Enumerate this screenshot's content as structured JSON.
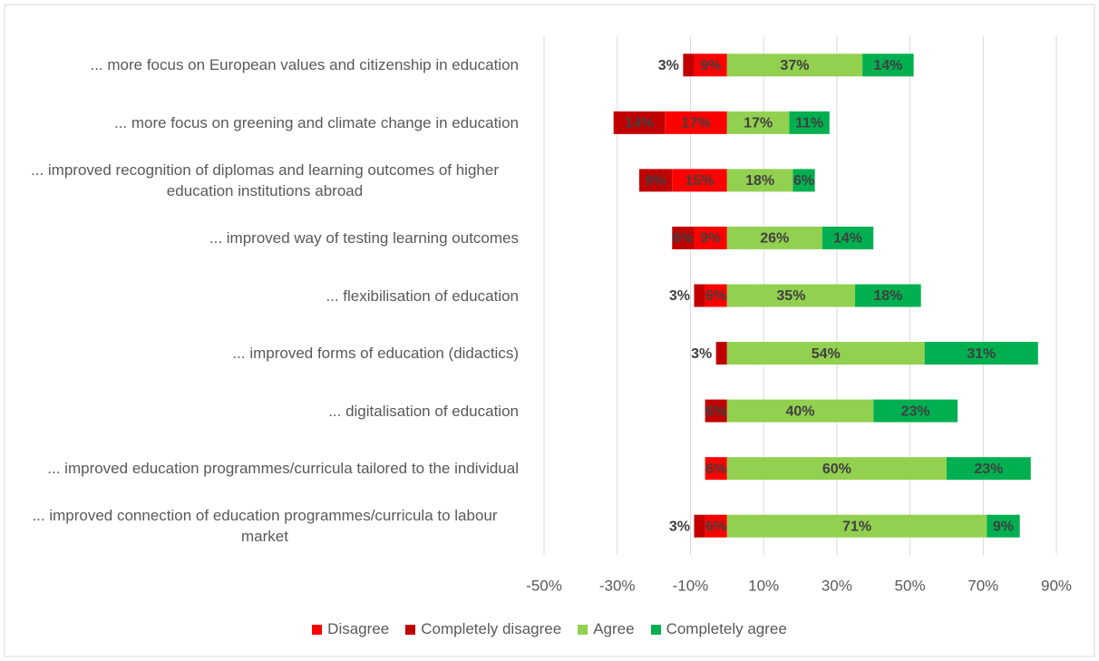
{
  "chart_data": {
    "type": "diverging_stacked_bar",
    "categories": [
      "... more focus on European values and citizenship in education",
      "... more focus on greening and climate change in education",
      "... improved recognition of diplomas and learning outcomes of higher education institutions abroad",
      "... improved way of testing learning outcomes",
      "... flexibilisation of education",
      "... improved forms of education (didactics)",
      "... digitalisation of education",
      "... improved education programmes/curricula tailored to the individual",
      "... improved connection of education programmes/curricula to labour market"
    ],
    "series": [
      {
        "name": "Disagree",
        "color": "#ff0000",
        "values": [
          -9,
          -17,
          -15,
          -9,
          -6,
          null,
          null,
          -6,
          -6
        ],
        "value_labels": [
          "9%",
          "17%",
          "15%",
          "9%",
          "6%",
          null,
          null,
          "6%",
          "6%"
        ]
      },
      {
        "name": "Completely disagree",
        "color": "#c00000",
        "values": [
          -3,
          -14,
          -9,
          -6,
          -3,
          -3,
          -6,
          null,
          -3
        ],
        "value_labels": [
          "3%",
          "14%",
          "9%",
          "6%",
          "3%",
          "3%",
          "6%",
          null,
          "3%"
        ]
      },
      {
        "name": "Agree",
        "color": "#92d050",
        "values": [
          37,
          17,
          18,
          26,
          35,
          54,
          40,
          60,
          71
        ],
        "value_labels": [
          "37%",
          "17%",
          "18%",
          "26%",
          "35%",
          "54%",
          "40%",
          "60%",
          "71%"
        ]
      },
      {
        "name": "Completely agree",
        "color": "#00b050",
        "values": [
          14,
          11,
          6,
          14,
          18,
          31,
          23,
          23,
          9
        ],
        "value_labels": [
          "14%",
          "11%",
          "6%",
          "14%",
          "18%",
          "31%",
          "23%",
          "23%",
          "9%"
        ]
      }
    ],
    "xlim": [
      -50,
      90
    ],
    "xticks": [
      {
        "value": -50,
        "label": "-50%"
      },
      {
        "value": -30,
        "label": "-30%"
      },
      {
        "value": -10,
        "label": "-10%"
      },
      {
        "value": 10,
        "label": "10%"
      },
      {
        "value": 30,
        "label": "30%"
      },
      {
        "value": 50,
        "label": "50%"
      },
      {
        "value": 70,
        "label": "70%"
      },
      {
        "value": 90,
        "label": "90%"
      }
    ],
    "grid": true,
    "legend": "bottom"
  }
}
